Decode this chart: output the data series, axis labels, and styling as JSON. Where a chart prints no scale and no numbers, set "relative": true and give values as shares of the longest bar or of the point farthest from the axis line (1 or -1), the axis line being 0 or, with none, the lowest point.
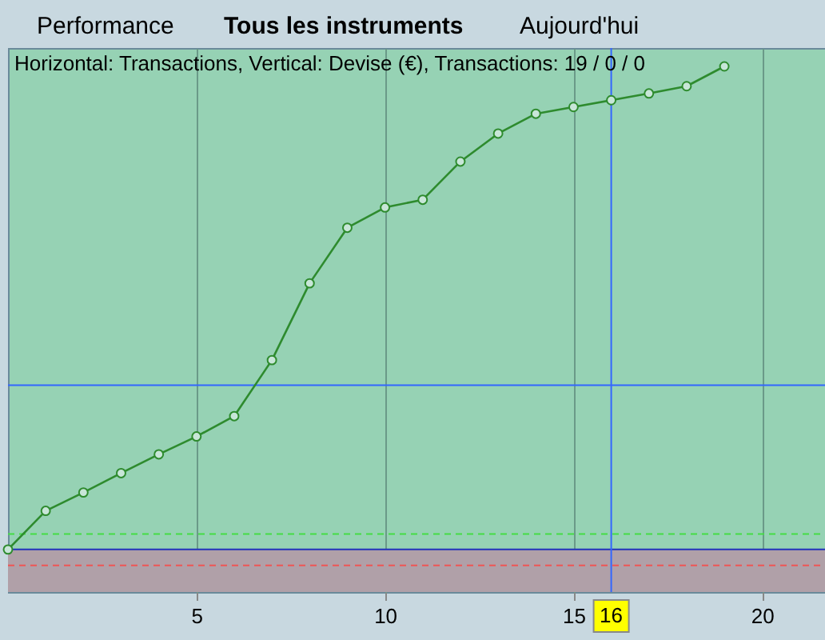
{
  "chart_data": {
    "type": "line",
    "title": "Horizontal: Transactions, Vertical: Devise (€), Transactions: 19 / 0 / 0",
    "annotations": [
      "Performance",
      "Tous les instruments",
      "Aujourd'hui"
    ],
    "x": [
      0,
      1,
      2,
      3,
      4,
      5,
      6,
      7,
      8,
      9,
      10,
      11,
      12,
      13,
      14,
      15,
      16,
      17,
      18,
      19
    ],
    "series": [
      {
        "color": "#2e8b2e",
        "values": [
          0,
          0.08,
          0.118,
          0.158,
          0.197,
          0.234,
          0.276,
          0.392,
          0.551,
          0.666,
          0.708,
          0.724,
          0.803,
          0.861,
          0.902,
          0.916,
          0.93,
          0.944,
          0.959,
          1
        ]
      }
    ],
    "relative": true,
    "xlim": [
      0,
      21.67
    ],
    "xticks": [
      5,
      10,
      15,
      20
    ],
    "grid": "x",
    "marker": "circle",
    "line_style": "solid",
    "tick_labels": "x",
    "ref_lines": [
      {
        "axis": "y",
        "value": 0.34,
        "color": "#3366ff"
      },
      {
        "axis": "y",
        "value": 0.032,
        "color": "#44dd44",
        "line_style": "dashed"
      },
      {
        "axis": "y",
        "value": -0.033,
        "color": "#ee5555",
        "line_style": "dashed"
      },
      {
        "axis": "y",
        "value": 0,
        "color": "#2233bb"
      },
      {
        "axis": "x",
        "value": 16,
        "label": "16",
        "color": "#3366ff"
      }
    ],
    "bands": [
      {
        "axis": "y",
        "from": -0.088,
        "to": 0,
        "color": "#b0a0a8"
      }
    ]
  }
}
